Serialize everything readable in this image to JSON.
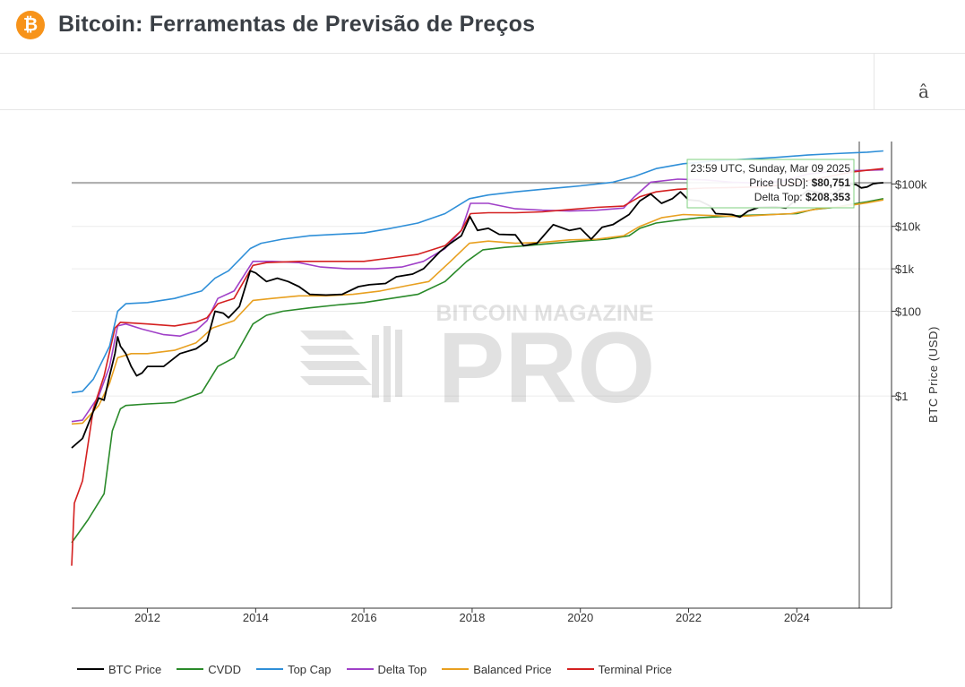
{
  "header": {
    "logo_glyph": "₿",
    "title": "Bitcoin: Ferramentas de Previsão de Preços"
  },
  "toolbar": {
    "menu_glyph": "â"
  },
  "watermark": {
    "line1": "BITCOIN MAGAZINE",
    "line2": "PRO"
  },
  "tooltip": {
    "date": "23:59 UTC, Sunday, Mar 09 2025",
    "price_label": "Price [USD]: ",
    "price_value": "$80,751",
    "delta_label": "Delta Top: ",
    "delta_value": "$208,353"
  },
  "chart_data": {
    "type": "line",
    "x_ticks": [
      "2012",
      "2014",
      "2016",
      "2018",
      "2020",
      "2022",
      "2024"
    ],
    "y_ticks": [
      "$1",
      "$100",
      "$1k",
      "$10k",
      "$100k"
    ],
    "ylabel": "BTC Price (USD)",
    "y_scale": "log",
    "xlim": [
      2010.6,
      2025.75
    ],
    "ylim": [
      1e-05,
      1000000
    ],
    "crosshair_x": 2025.19,
    "crosshair_y": 80751,
    "series": [
      {
        "name": "BTC Price",
        "color": "#000000",
        "points": [
          [
            2010.6,
            0.06
          ],
          [
            2010.8,
            0.1
          ],
          [
            2010.95,
            0.3
          ],
          [
            2011.1,
            0.9
          ],
          [
            2011.2,
            0.8
          ],
          [
            2011.3,
            3
          ],
          [
            2011.4,
            10
          ],
          [
            2011.45,
            25
          ],
          [
            2011.5,
            15
          ],
          [
            2011.6,
            10
          ],
          [
            2011.7,
            5
          ],
          [
            2011.8,
            3
          ],
          [
            2011.9,
            3.5
          ],
          [
            2012.0,
            5
          ],
          [
            2012.3,
            5
          ],
          [
            2012.6,
            10
          ],
          [
            2012.9,
            13
          ],
          [
            2013.1,
            20
          ],
          [
            2013.25,
            100
          ],
          [
            2013.4,
            90
          ],
          [
            2013.5,
            70
          ],
          [
            2013.7,
            130
          ],
          [
            2013.9,
            900
          ],
          [
            2014.0,
            800
          ],
          [
            2014.2,
            500
          ],
          [
            2014.4,
            600
          ],
          [
            2014.6,
            500
          ],
          [
            2014.8,
            380
          ],
          [
            2015.0,
            250
          ],
          [
            2015.3,
            240
          ],
          [
            2015.6,
            250
          ],
          [
            2015.9,
            380
          ],
          [
            2016.1,
            420
          ],
          [
            2016.4,
            450
          ],
          [
            2016.6,
            650
          ],
          [
            2016.9,
            750
          ],
          [
            2017.1,
            1000
          ],
          [
            2017.4,
            2500
          ],
          [
            2017.6,
            4000
          ],
          [
            2017.8,
            6000
          ],
          [
            2017.96,
            17000
          ],
          [
            2018.1,
            8000
          ],
          [
            2018.3,
            9000
          ],
          [
            2018.5,
            6500
          ],
          [
            2018.8,
            6300
          ],
          [
            2018.95,
            3500
          ],
          [
            2019.2,
            4000
          ],
          [
            2019.5,
            11000
          ],
          [
            2019.8,
            8000
          ],
          [
            2020.0,
            9000
          ],
          [
            2020.2,
            5000
          ],
          [
            2020.4,
            9500
          ],
          [
            2020.6,
            11000
          ],
          [
            2020.9,
            19000
          ],
          [
            2021.1,
            40000
          ],
          [
            2021.3,
            58000
          ],
          [
            2021.5,
            35000
          ],
          [
            2021.7,
            45000
          ],
          [
            2021.85,
            65000
          ],
          [
            2022.0,
            42000
          ],
          [
            2022.2,
            40000
          ],
          [
            2022.4,
            30000
          ],
          [
            2022.5,
            20000
          ],
          [
            2022.8,
            19000
          ],
          [
            2022.95,
            16500
          ],
          [
            2023.1,
            23000
          ],
          [
            2023.3,
            28000
          ],
          [
            2023.6,
            29000
          ],
          [
            2023.8,
            27000
          ],
          [
            2024.0,
            43000
          ],
          [
            2024.2,
            70000
          ],
          [
            2024.5,
            60000
          ],
          [
            2024.7,
            60000
          ],
          [
            2024.9,
            95000
          ],
          [
            2025.0,
            100000
          ],
          [
            2025.1,
            96000
          ],
          [
            2025.19,
            80751
          ],
          [
            2025.3,
            85000
          ],
          [
            2025.4,
            100000
          ],
          [
            2025.5,
            105000
          ],
          [
            2025.6,
            107000
          ]
        ]
      },
      {
        "name": "CVDD",
        "color": "#2a8a2a",
        "points": [
          [
            2010.6,
            0.00035
          ],
          [
            2010.9,
            0.0012
          ],
          [
            2011.2,
            0.005
          ],
          [
            2011.35,
            0.15
          ],
          [
            2011.5,
            0.5
          ],
          [
            2011.6,
            0.6
          ],
          [
            2012.0,
            0.65
          ],
          [
            2012.5,
            0.7
          ],
          [
            2013.0,
            1.2
          ],
          [
            2013.3,
            5
          ],
          [
            2013.6,
            8
          ],
          [
            2013.95,
            50
          ],
          [
            2014.2,
            80
          ],
          [
            2014.5,
            100
          ],
          [
            2015.0,
            120
          ],
          [
            2015.5,
            140
          ],
          [
            2016.0,
            160
          ],
          [
            2016.5,
            200
          ],
          [
            2017.0,
            250
          ],
          [
            2017.5,
            500
          ],
          [
            2017.9,
            1500
          ],
          [
            2018.2,
            2800
          ],
          [
            2018.6,
            3200
          ],
          [
            2019.0,
            3500
          ],
          [
            2019.5,
            4000
          ],
          [
            2020.0,
            4500
          ],
          [
            2020.5,
            5000
          ],
          [
            2020.9,
            6000
          ],
          [
            2021.1,
            9000
          ],
          [
            2021.4,
            12000
          ],
          [
            2021.8,
            14000
          ],
          [
            2022.2,
            16000
          ],
          [
            2022.6,
            17000
          ],
          [
            2023.0,
            18000
          ],
          [
            2023.5,
            19000
          ],
          [
            2024.0,
            20000
          ],
          [
            2024.3,
            25000
          ],
          [
            2024.7,
            28000
          ],
          [
            2025.0,
            33000
          ],
          [
            2025.3,
            38000
          ],
          [
            2025.6,
            45000
          ]
        ]
      },
      {
        "name": "Top Cap",
        "color": "#2f8fd8",
        "points": [
          [
            2010.6,
            1.2
          ],
          [
            2010.8,
            1.3
          ],
          [
            2011.0,
            2.5
          ],
          [
            2011.3,
            15
          ],
          [
            2011.45,
            100
          ],
          [
            2011.6,
            150
          ],
          [
            2012.0,
            160
          ],
          [
            2012.5,
            200
          ],
          [
            2013.0,
            300
          ],
          [
            2013.25,
            600
          ],
          [
            2013.5,
            900
          ],
          [
            2013.9,
            3000
          ],
          [
            2014.1,
            4000
          ],
          [
            2014.5,
            5000
          ],
          [
            2015.0,
            6000
          ],
          [
            2015.5,
            6500
          ],
          [
            2016.0,
            7000
          ],
          [
            2016.5,
            9000
          ],
          [
            2017.0,
            12000
          ],
          [
            2017.5,
            20000
          ],
          [
            2017.95,
            45000
          ],
          [
            2018.3,
            55000
          ],
          [
            2018.8,
            65000
          ],
          [
            2019.3,
            75000
          ],
          [
            2020.0,
            90000
          ],
          [
            2020.6,
            110000
          ],
          [
            2021.0,
            150000
          ],
          [
            2021.4,
            230000
          ],
          [
            2021.9,
            300000
          ],
          [
            2022.5,
            350000
          ],
          [
            2023.0,
            380000
          ],
          [
            2023.6,
            420000
          ],
          [
            2024.2,
            480000
          ],
          [
            2024.7,
            520000
          ],
          [
            2025.3,
            560000
          ],
          [
            2025.6,
            600000
          ]
        ]
      },
      {
        "name": "Delta Top",
        "color": "#a040c8",
        "points": [
          [
            2010.6,
            0.25
          ],
          [
            2010.8,
            0.27
          ],
          [
            2011.1,
            1.0
          ],
          [
            2011.3,
            5
          ],
          [
            2011.45,
            45
          ],
          [
            2011.6,
            50
          ],
          [
            2011.9,
            38
          ],
          [
            2012.3,
            28
          ],
          [
            2012.6,
            26
          ],
          [
            2012.9,
            35
          ],
          [
            2013.1,
            60
          ],
          [
            2013.3,
            200
          ],
          [
            2013.6,
            300
          ],
          [
            2013.95,
            1500
          ],
          [
            2014.3,
            1500
          ],
          [
            2014.8,
            1400
          ],
          [
            2015.2,
            1100
          ],
          [
            2015.7,
            1000
          ],
          [
            2016.2,
            1000
          ],
          [
            2016.7,
            1100
          ],
          [
            2017.1,
            1500
          ],
          [
            2017.5,
            3000
          ],
          [
            2017.8,
            8000
          ],
          [
            2017.97,
            35000
          ],
          [
            2018.3,
            35000
          ],
          [
            2018.8,
            26000
          ],
          [
            2019.3,
            24000
          ],
          [
            2019.8,
            23000
          ],
          [
            2020.3,
            24000
          ],
          [
            2020.8,
            27000
          ],
          [
            2021.0,
            50000
          ],
          [
            2021.3,
            110000
          ],
          [
            2021.8,
            130000
          ],
          [
            2022.3,
            125000
          ],
          [
            2022.8,
            110000
          ],
          [
            2023.3,
            105000
          ],
          [
            2023.8,
            120000
          ],
          [
            2024.2,
            170000
          ],
          [
            2024.7,
            200000
          ],
          [
            2025.19,
            208353
          ],
          [
            2025.6,
            215000
          ]
        ]
      },
      {
        "name": "Balanced Price",
        "color": "#e8a020",
        "points": [
          [
            2010.6,
            0.22
          ],
          [
            2010.8,
            0.23
          ],
          [
            2011.1,
            0.6
          ],
          [
            2011.3,
            2
          ],
          [
            2011.45,
            8
          ],
          [
            2011.7,
            10
          ],
          [
            2012.0,
            10
          ],
          [
            2012.5,
            12
          ],
          [
            2012.9,
            18
          ],
          [
            2013.2,
            40
          ],
          [
            2013.6,
            60
          ],
          [
            2013.95,
            180
          ],
          [
            2014.3,
            200
          ],
          [
            2014.8,
            230
          ],
          [
            2015.3,
            230
          ],
          [
            2015.8,
            250
          ],
          [
            2016.3,
            300
          ],
          [
            2016.8,
            400
          ],
          [
            2017.2,
            500
          ],
          [
            2017.6,
            1500
          ],
          [
            2017.95,
            4000
          ],
          [
            2018.3,
            4500
          ],
          [
            2018.8,
            4000
          ],
          [
            2019.3,
            4200
          ],
          [
            2019.8,
            4800
          ],
          [
            2020.3,
            5000
          ],
          [
            2020.8,
            6000
          ],
          [
            2021.1,
            10000
          ],
          [
            2021.5,
            16000
          ],
          [
            2021.9,
            19000
          ],
          [
            2022.4,
            18000
          ],
          [
            2022.9,
            17000
          ],
          [
            2023.4,
            18500
          ],
          [
            2023.9,
            20000
          ],
          [
            2024.4,
            26000
          ],
          [
            2024.9,
            30000
          ],
          [
            2025.3,
            36000
          ],
          [
            2025.6,
            42000
          ]
        ]
      },
      {
        "name": "Terminal Price",
        "color": "#d42020",
        "points": [
          [
            2010.6,
            0.0001
          ],
          [
            2010.65,
            0.003
          ],
          [
            2010.8,
            0.01
          ],
          [
            2011.0,
            0.5
          ],
          [
            2011.2,
            3
          ],
          [
            2011.4,
            40
          ],
          [
            2011.5,
            55
          ],
          [
            2012.0,
            50
          ],
          [
            2012.5,
            45
          ],
          [
            2012.9,
            55
          ],
          [
            2013.1,
            70
          ],
          [
            2013.3,
            150
          ],
          [
            2013.6,
            200
          ],
          [
            2013.95,
            1200
          ],
          [
            2014.2,
            1400
          ],
          [
            2014.8,
            1500
          ],
          [
            2015.5,
            1500
          ],
          [
            2016.0,
            1500
          ],
          [
            2016.5,
            1800
          ],
          [
            2017.0,
            2200
          ],
          [
            2017.5,
            3500
          ],
          [
            2017.8,
            8000
          ],
          [
            2017.97,
            20000
          ],
          [
            2018.3,
            21000
          ],
          [
            2018.8,
            21000
          ],
          [
            2019.3,
            22000
          ],
          [
            2019.8,
            25000
          ],
          [
            2020.3,
            28000
          ],
          [
            2020.8,
            30000
          ],
          [
            2021.1,
            50000
          ],
          [
            2021.4,
            65000
          ],
          [
            2021.8,
            75000
          ],
          [
            2022.3,
            80000
          ],
          [
            2022.8,
            82000
          ],
          [
            2023.3,
            85000
          ],
          [
            2023.8,
            95000
          ],
          [
            2024.2,
            120000
          ],
          [
            2024.6,
            150000
          ],
          [
            2025.0,
            190000
          ],
          [
            2025.3,
            210000
          ],
          [
            2025.6,
            230000
          ]
        ]
      }
    ]
  }
}
